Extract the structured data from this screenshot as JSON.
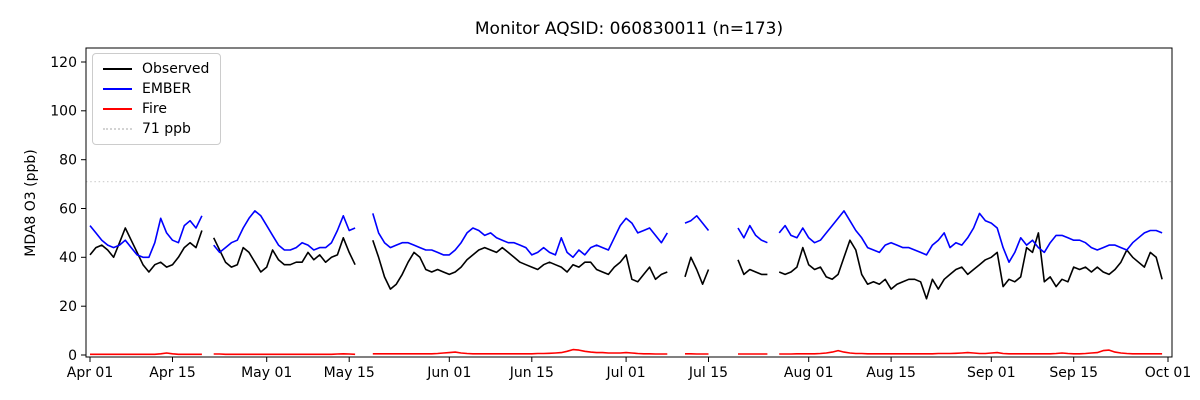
{
  "chart_data": {
    "type": "line",
    "title": "Monitor AQSID: 060830011 (n=173)",
    "xlabel": "",
    "ylabel": "MDA8 O3 (ppb)",
    "n_points": 173,
    "grid": false,
    "legend_position": "upper left",
    "ylim": [
      -2,
      126
    ],
    "y_ticks": [
      0,
      20,
      40,
      60,
      80,
      100,
      120
    ],
    "x_unit": "daily values; index 0 = Apr 01, index 182 = Sep 30; null = missing day",
    "x_tick_days": [
      0,
      14,
      30,
      44,
      61,
      75,
      91,
      105,
      122,
      136,
      153,
      167,
      183
    ],
    "x_tick_labels": [
      "Apr 01",
      "Apr 15",
      "May 01",
      "May 15",
      "Jun 01",
      "Jun 15",
      "Jul 01",
      "Jul 15",
      "Aug 01",
      "Aug 15",
      "Sep 01",
      "Sep 15",
      "Oct 01"
    ],
    "reference_line": {
      "label": "71 ppb",
      "value": 71,
      "color": "#d3d3d3",
      "style": "dotted"
    },
    "series": [
      {
        "name": "Observed",
        "color": "#000000",
        "style": "solid",
        "values": [
          41,
          44,
          45,
          43,
          40,
          46,
          52,
          47,
          42,
          37,
          34,
          37,
          38,
          36,
          37,
          40,
          44,
          46,
          44,
          51,
          null,
          48,
          43,
          38,
          36,
          37,
          44,
          42,
          38,
          34,
          36,
          43,
          39,
          37,
          37,
          38,
          38,
          42,
          39,
          41,
          38,
          40,
          41,
          48,
          42,
          37,
          null,
          null,
          47,
          40,
          32,
          27,
          29,
          33,
          38,
          42,
          40,
          35,
          34,
          35,
          34,
          33,
          34,
          36,
          39,
          41,
          43,
          44,
          43,
          42,
          44,
          42,
          40,
          38,
          37,
          36,
          35,
          37,
          38,
          37,
          36,
          34,
          37,
          36,
          38,
          38,
          35,
          34,
          33,
          36,
          38,
          41,
          31,
          30,
          33,
          36,
          31,
          33,
          34,
          null,
          null,
          32,
          40,
          35,
          29,
          35,
          null,
          null,
          null,
          null,
          39,
          33,
          35,
          34,
          33,
          33,
          null,
          34,
          33,
          34,
          36,
          44,
          37,
          35,
          36,
          32,
          31,
          33,
          40,
          47,
          43,
          33,
          29,
          30,
          29,
          31,
          27,
          29,
          30,
          31,
          31,
          30,
          23,
          31,
          27,
          31,
          33,
          35,
          36,
          33,
          35,
          37,
          39,
          40,
          42,
          28,
          31,
          30,
          32,
          44,
          42,
          50,
          30,
          32,
          28,
          31,
          30,
          36,
          35,
          36,
          34,
          36,
          34,
          33,
          35,
          38,
          43,
          40,
          38,
          36,
          42,
          40,
          31
        ]
      },
      {
        "name": "EMBER",
        "color": "#0000ff",
        "style": "solid",
        "values": [
          53,
          50,
          47,
          45,
          44,
          45,
          47,
          44,
          41,
          40,
          40,
          46,
          56,
          50,
          47,
          46,
          53,
          55,
          52,
          57,
          null,
          45,
          42,
          44,
          46,
          47,
          52,
          56,
          59,
          57,
          53,
          49,
          45,
          43,
          43,
          44,
          46,
          45,
          43,
          44,
          44,
          46,
          51,
          57,
          51,
          52,
          null,
          null,
          58,
          50,
          46,
          44,
          45,
          46,
          46,
          45,
          44,
          43,
          43,
          42,
          41,
          41,
          43,
          46,
          50,
          52,
          51,
          49,
          50,
          48,
          47,
          46,
          46,
          45,
          44,
          41,
          42,
          44,
          42,
          41,
          48,
          42,
          40,
          43,
          41,
          44,
          45,
          44,
          43,
          48,
          53,
          56,
          54,
          50,
          51,
          52,
          49,
          46,
          50,
          null,
          null,
          54,
          55,
          57,
          54,
          51,
          null,
          null,
          null,
          null,
          52,
          48,
          53,
          49,
          47,
          46,
          null,
          50,
          53,
          49,
          48,
          52,
          48,
          46,
          47,
          50,
          53,
          56,
          59,
          55,
          51,
          48,
          44,
          43,
          42,
          45,
          46,
          45,
          44,
          44,
          43,
          42,
          41,
          45,
          47,
          50,
          44,
          46,
          45,
          48,
          52,
          58,
          55,
          54,
          52,
          44,
          38,
          42,
          48,
          45,
          47,
          44,
          42,
          46,
          49,
          49,
          48,
          47,
          47,
          46,
          44,
          43,
          44,
          45,
          45,
          44,
          43,
          46,
          48,
          50,
          51,
          51,
          50
        ]
      },
      {
        "name": "Fire",
        "color": "#ff0000",
        "style": "solid",
        "values": [
          0.3,
          0.3,
          0.3,
          0.3,
          0.3,
          0.3,
          0.3,
          0.3,
          0.3,
          0.3,
          0.3,
          0.3,
          0.5,
          0.8,
          0.5,
          0.3,
          0.3,
          0.3,
          0.3,
          0.3,
          null,
          0.4,
          0.4,
          0.3,
          0.3,
          0.3,
          0.3,
          0.3,
          0.3,
          0.3,
          0.3,
          0.3,
          0.3,
          0.3,
          0.3,
          0.3,
          0.3,
          0.3,
          0.3,
          0.3,
          0.3,
          0.3,
          0.4,
          0.5,
          0.4,
          0.3,
          null,
          null,
          0.5,
          0.5,
          0.5,
          0.5,
          0.5,
          0.5,
          0.5,
          0.5,
          0.5,
          0.5,
          0.5,
          0.6,
          0.8,
          1.0,
          1.2,
          0.8,
          0.6,
          0.5,
          0.5,
          0.5,
          0.5,
          0.5,
          0.5,
          0.5,
          0.5,
          0.5,
          0.5,
          0.5,
          0.6,
          0.6,
          0.7,
          0.8,
          1.0,
          1.5,
          2.2,
          2.0,
          1.5,
          1.2,
          1.0,
          1.0,
          0.8,
          0.8,
          0.8,
          1.0,
          0.8,
          0.6,
          0.5,
          0.5,
          0.4,
          0.4,
          0.4,
          null,
          null,
          0.5,
          0.5,
          0.4,
          0.4,
          0.4,
          null,
          null,
          null,
          null,
          0.4,
          0.4,
          0.4,
          0.4,
          0.4,
          0.4,
          null,
          0.4,
          0.4,
          0.4,
          0.5,
          0.5,
          0.5,
          0.5,
          0.6,
          0.8,
          1.2,
          1.8,
          1.2,
          0.8,
          0.6,
          0.6,
          0.5,
          0.5,
          0.5,
          0.5,
          0.5,
          0.5,
          0.5,
          0.5,
          0.5,
          0.5,
          0.5,
          0.5,
          0.6,
          0.6,
          0.6,
          0.7,
          0.8,
          1.0,
          0.8,
          0.6,
          0.6,
          0.8,
          1.0,
          0.6,
          0.5,
          0.5,
          0.5,
          0.5,
          0.5,
          0.5,
          0.5,
          0.5,
          0.6,
          0.8,
          0.6,
          0.5,
          0.5,
          0.6,
          0.8,
          1.0,
          1.8,
          2.0,
          1.2,
          0.8,
          0.6,
          0.5,
          0.5,
          0.5,
          0.5,
          0.5,
          0.5
        ]
      }
    ]
  }
}
